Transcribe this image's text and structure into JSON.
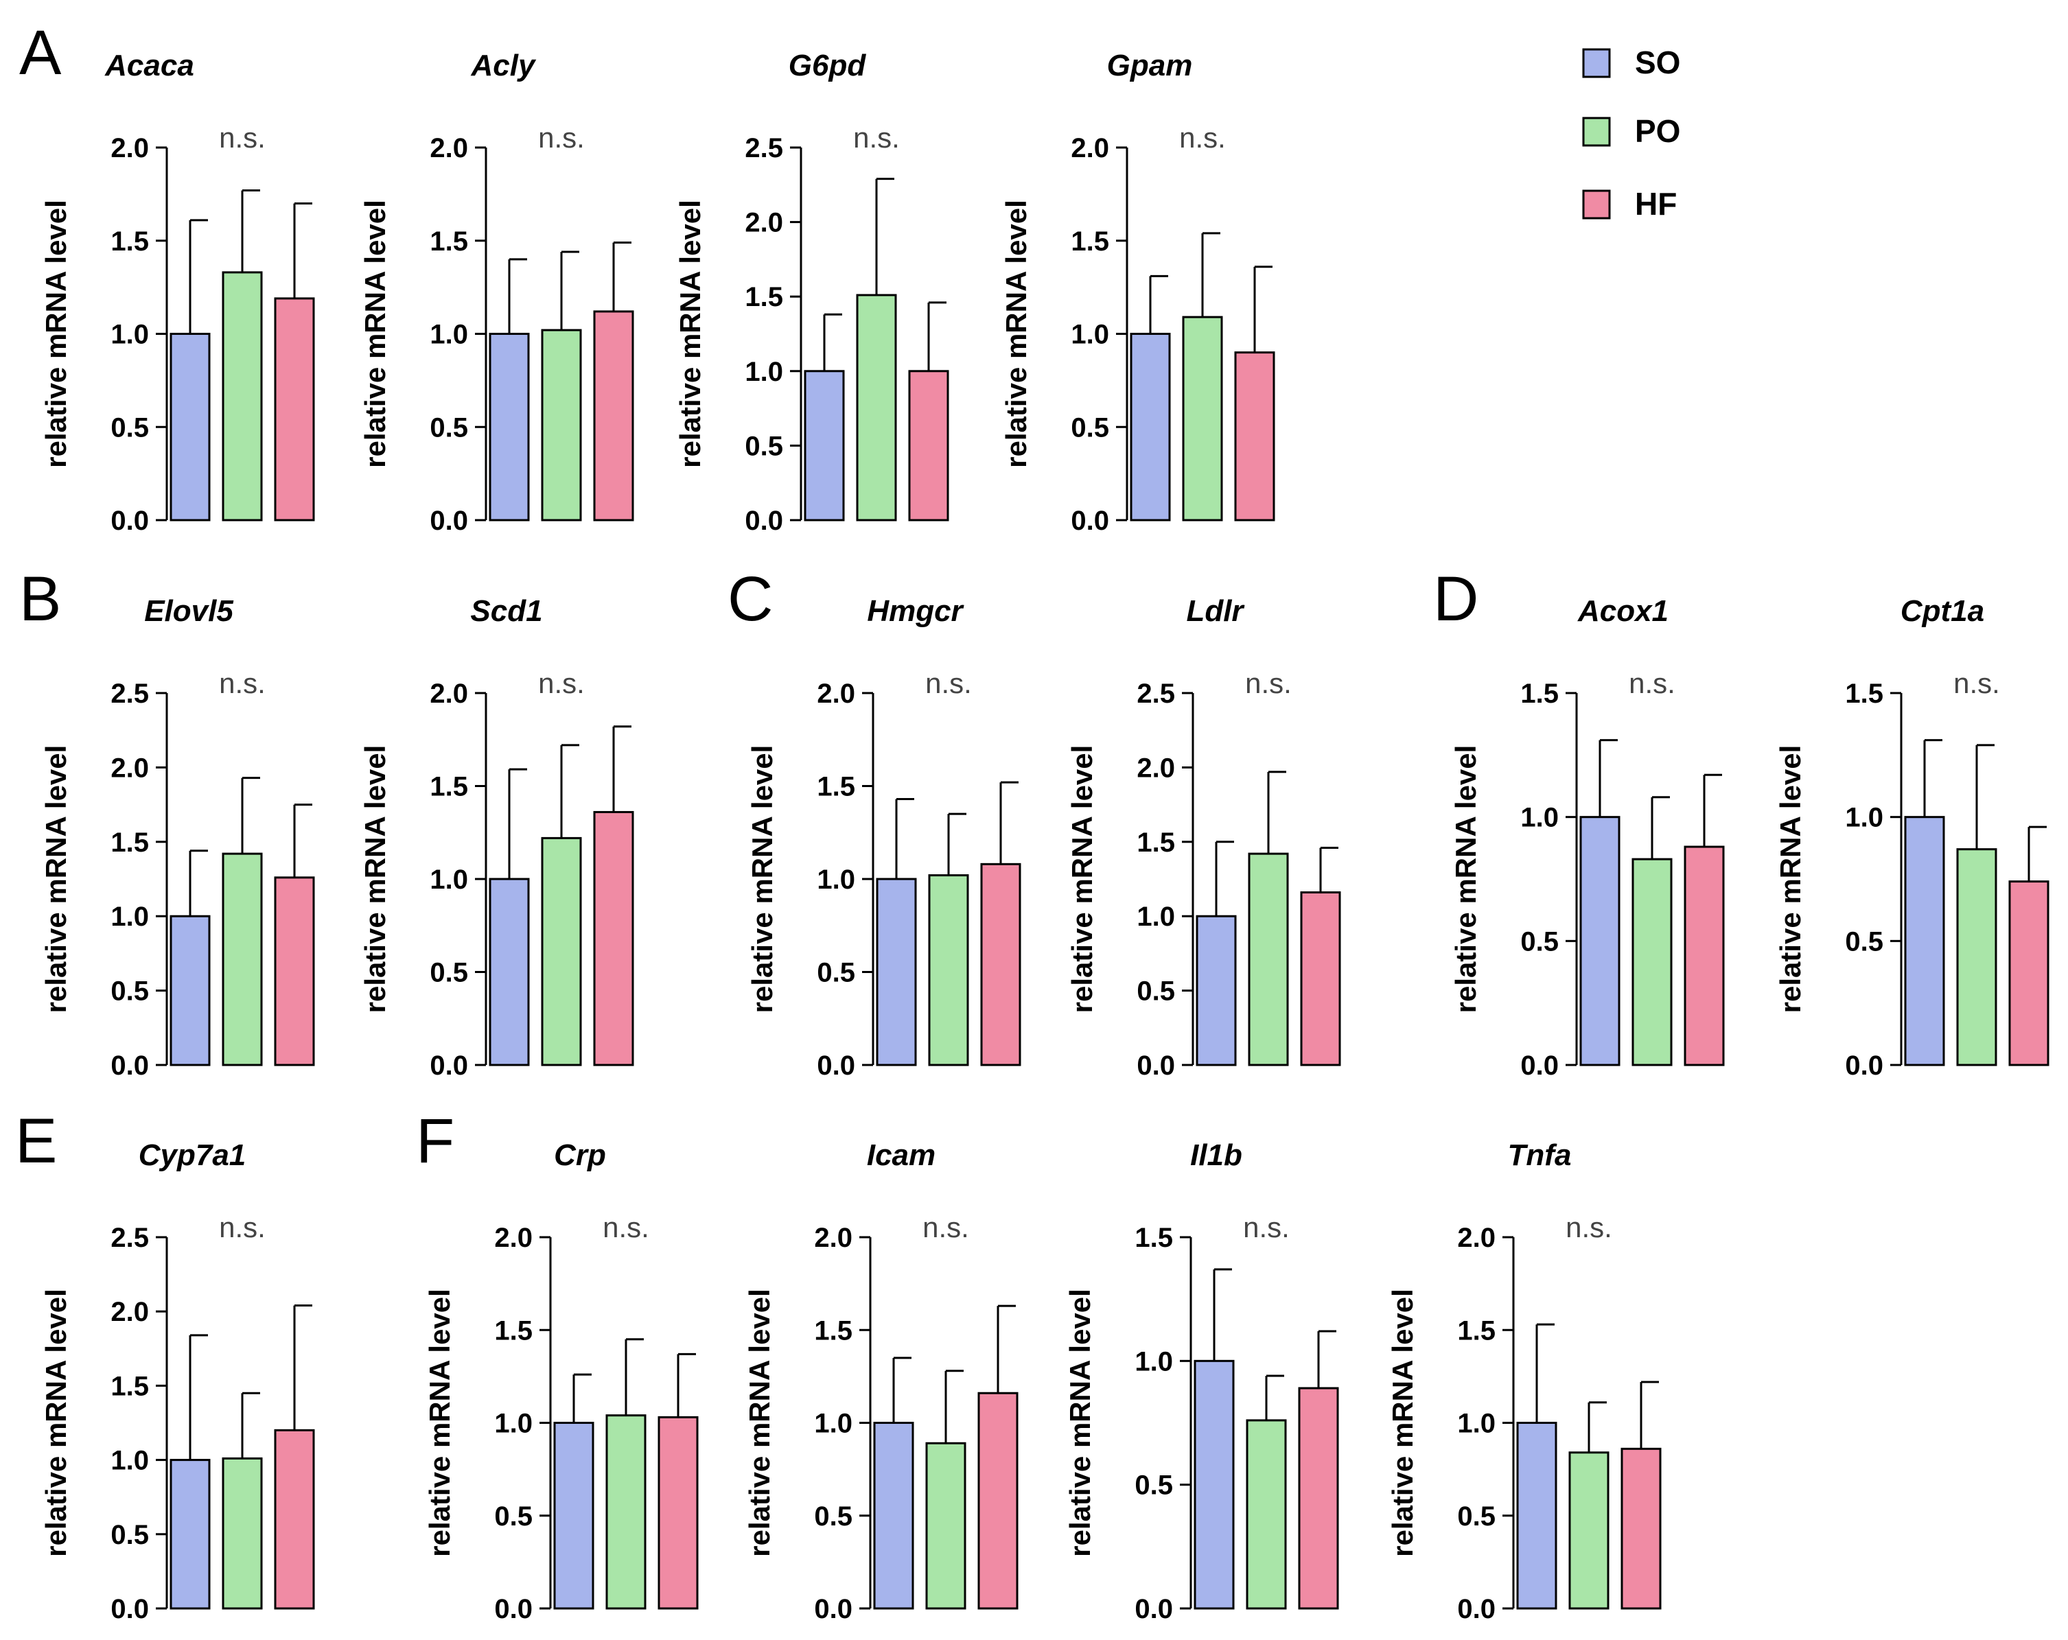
{
  "colors": {
    "SO": "#a6b4ec",
    "PO": "#a9e5a8",
    "HF": "#f08ba4"
  },
  "legend": [
    {
      "key": "SO",
      "label": "SO"
    },
    {
      "key": "PO",
      "label": "PO"
    },
    {
      "key": "HF",
      "label": "HF"
    }
  ],
  "panel_letters": [
    "A",
    "B",
    "C",
    "D",
    "E",
    "F"
  ],
  "chart_data": [
    {
      "type": "bar",
      "panel": "A",
      "title": "Acaca",
      "ylabel": "relative mRNA level",
      "categories": [
        "SO",
        "PO",
        "HF"
      ],
      "values": [
        1.0,
        1.33,
        1.19
      ],
      "errors": [
        0.61,
        0.44,
        0.51
      ],
      "ylim": [
        0,
        2.0
      ],
      "yticks": [
        "0.0",
        "0.5",
        "1.0",
        "1.5",
        "2.0"
      ],
      "annotation": "n.s."
    },
    {
      "type": "bar",
      "panel": "A",
      "title": "Acly",
      "ylabel": "relative mRNA level",
      "categories": [
        "SO",
        "PO",
        "HF"
      ],
      "values": [
        1.0,
        1.02,
        1.12
      ],
      "errors": [
        0.4,
        0.42,
        0.37
      ],
      "ylim": [
        0,
        2.0
      ],
      "yticks": [
        "0.0",
        "0.5",
        "1.0",
        "1.5",
        "2.0"
      ],
      "annotation": "n.s."
    },
    {
      "type": "bar",
      "panel": "A",
      "title": "G6pd",
      "ylabel": "relative mRNA level",
      "categories": [
        "SO",
        "PO",
        "HF"
      ],
      "values": [
        1.0,
        1.51,
        1.0
      ],
      "errors": [
        0.38,
        0.78,
        0.46
      ],
      "ylim": [
        0,
        2.5
      ],
      "yticks": [
        "0.0",
        "0.5",
        "1.0",
        "1.5",
        "2.0",
        "2.5"
      ],
      "annotation": "n.s."
    },
    {
      "type": "bar",
      "panel": "A",
      "title": "Gpam",
      "ylabel": "relative mRNA level",
      "categories": [
        "SO",
        "PO",
        "HF"
      ],
      "values": [
        1.0,
        1.09,
        0.9
      ],
      "errors": [
        0.31,
        0.45,
        0.46
      ],
      "ylim": [
        0,
        2.0
      ],
      "yticks": [
        "0.0",
        "0.5",
        "1.0",
        "1.5",
        "2.0"
      ],
      "annotation": "n.s."
    },
    {
      "type": "bar",
      "panel": "B",
      "title": "Elovl5",
      "ylabel": "relative mRNA level",
      "categories": [
        "SO",
        "PO",
        "HF"
      ],
      "values": [
        1.0,
        1.42,
        1.26
      ],
      "errors": [
        0.44,
        0.51,
        0.49
      ],
      "ylim": [
        0,
        2.5
      ],
      "yticks": [
        "0.0",
        "0.5",
        "1.0",
        "1.5",
        "2.0",
        "2.5"
      ],
      "annotation": "n.s."
    },
    {
      "type": "bar",
      "panel": "B",
      "title": "Scd1",
      "ylabel": "relative mRNA level",
      "categories": [
        "SO",
        "PO",
        "HF"
      ],
      "values": [
        1.0,
        1.22,
        1.36
      ],
      "errors": [
        0.59,
        0.5,
        0.46
      ],
      "ylim": [
        0,
        2.0
      ],
      "yticks": [
        "0.0",
        "0.5",
        "1.0",
        "1.5",
        "2.0"
      ],
      "annotation": "n.s."
    },
    {
      "type": "bar",
      "panel": "C",
      "title": "Hmgcr",
      "ylabel": "relative mRNA level",
      "categories": [
        "SO",
        "PO",
        "HF"
      ],
      "values": [
        1.0,
        1.02,
        1.08
      ],
      "errors": [
        0.43,
        0.33,
        0.44
      ],
      "ylim": [
        0,
        2.0
      ],
      "yticks": [
        "0.0",
        "0.5",
        "1.0",
        "1.5",
        "2.0"
      ],
      "annotation": "n.s."
    },
    {
      "type": "bar",
      "panel": "C",
      "title": "Ldlr",
      "ylabel": "relative mRNA level",
      "categories": [
        "SO",
        "PO",
        "HF"
      ],
      "values": [
        1.0,
        1.42,
        1.16
      ],
      "errors": [
        0.5,
        0.55,
        0.3
      ],
      "ylim": [
        0,
        2.5
      ],
      "yticks": [
        "0.0",
        "0.5",
        "1.0",
        "1.5",
        "2.0",
        "2.5"
      ],
      "annotation": "n.s."
    },
    {
      "type": "bar",
      "panel": "D",
      "title": "Acox1",
      "ylabel": "relative mRNA level",
      "categories": [
        "SO",
        "PO",
        "HF"
      ],
      "values": [
        1.0,
        0.83,
        0.88
      ],
      "errors": [
        0.31,
        0.25,
        0.29
      ],
      "ylim": [
        0,
        1.5
      ],
      "yticks": [
        "0.0",
        "0.5",
        "1.0",
        "1.5"
      ],
      "annotation": "n.s."
    },
    {
      "type": "bar",
      "panel": "D",
      "title": "Cpt1a",
      "ylabel": "relative mRNA level",
      "categories": [
        "SO",
        "PO",
        "HF"
      ],
      "values": [
        1.0,
        0.87,
        0.74
      ],
      "errors": [
        0.31,
        0.42,
        0.22
      ],
      "ylim": [
        0,
        1.5
      ],
      "yticks": [
        "0.0",
        "0.5",
        "1.0",
        "1.5"
      ],
      "annotation": "n.s."
    },
    {
      "type": "bar",
      "panel": "E",
      "title": "Cyp7a1",
      "ylabel": "relative mRNA level",
      "categories": [
        "SO",
        "PO",
        "HF"
      ],
      "values": [
        1.0,
        1.01,
        1.2
      ],
      "errors": [
        0.84,
        0.44,
        0.84
      ],
      "ylim": [
        0,
        2.5
      ],
      "yticks": [
        "0.0",
        "0.5",
        "1.0",
        "1.5",
        "2.0",
        "2.5"
      ],
      "annotation": "n.s."
    },
    {
      "type": "bar",
      "panel": "F",
      "title": "Crp",
      "ylabel": "relative mRNA level",
      "categories": [
        "SO",
        "PO",
        "HF"
      ],
      "values": [
        1.0,
        1.04,
        1.03
      ],
      "errors": [
        0.26,
        0.41,
        0.34
      ],
      "ylim": [
        0,
        2.0
      ],
      "yticks": [
        "0.0",
        "0.5",
        "1.0",
        "1.5",
        "2.0"
      ],
      "annotation": "n.s."
    },
    {
      "type": "bar",
      "panel": "F",
      "title": "Icam",
      "ylabel": "relative mRNA level",
      "categories": [
        "SO",
        "PO",
        "HF"
      ],
      "values": [
        1.0,
        0.89,
        1.16
      ],
      "errors": [
        0.35,
        0.39,
        0.47
      ],
      "ylim": [
        0,
        2.0
      ],
      "yticks": [
        "0.0",
        "0.5",
        "1.0",
        "1.5",
        "2.0"
      ],
      "annotation": "n.s."
    },
    {
      "type": "bar",
      "panel": "F",
      "title": "Il1b",
      "ylabel": "relative mRNA level",
      "categories": [
        "SO",
        "PO",
        "HF"
      ],
      "values": [
        1.0,
        0.76,
        0.89
      ],
      "errors": [
        0.37,
        0.18,
        0.23
      ],
      "ylim": [
        0,
        1.5
      ],
      "yticks": [
        "0.0",
        "0.5",
        "1.0",
        "1.5"
      ],
      "annotation": "n.s."
    },
    {
      "type": "bar",
      "panel": "F",
      "title": "Tnfa",
      "ylabel": "relative mRNA level",
      "categories": [
        "SO",
        "PO",
        "HF"
      ],
      "values": [
        1.0,
        0.84,
        0.86
      ],
      "errors": [
        0.53,
        0.27,
        0.36
      ],
      "ylim": [
        0,
        2.0
      ],
      "yticks": [
        "0.0",
        "0.5",
        "1.0",
        "1.5",
        "2.0"
      ],
      "annotation": "n.s."
    }
  ]
}
